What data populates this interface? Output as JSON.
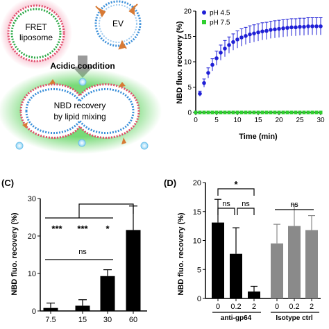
{
  "panel_a": {
    "fret_label_1": "FRET",
    "fret_label_2": "liposome",
    "ev_label": "EV",
    "condition_label": "Acidic condition",
    "result_label_1": "NBD recovery",
    "result_label_2": "by lipid mixing",
    "colors": {
      "glow": "#5fd35f",
      "pink_glow": "#f7b8c8",
      "vesicle_blue": "#3a8fd9",
      "protein": "#d77a35",
      "arrow": "#9a9a9a"
    }
  },
  "chart_data": [
    {
      "id": "B",
      "type": "scatter",
      "title": "",
      "xlabel": "Time (min)",
      "ylabel": "NBD fluo. recovery (%)",
      "xlim": [
        0,
        30
      ],
      "ylim": [
        0,
        20
      ],
      "xticks": [
        0,
        5,
        10,
        15,
        20,
        25,
        30
      ],
      "yticks": [
        0,
        5,
        10,
        15,
        20
      ],
      "legend_position": "top-left",
      "series": [
        {
          "name": "pH 4.5",
          "color": "#1f1fd6",
          "x": [
            0,
            1,
            2,
            3,
            4,
            5,
            6,
            7,
            8,
            9,
            10,
            11,
            12,
            13,
            14,
            15,
            16,
            17,
            18,
            19,
            20,
            21,
            22,
            23,
            24,
            25,
            26,
            27,
            28,
            29,
            30
          ],
          "y": [
            0,
            3.7,
            5.8,
            7.8,
            9.4,
            10.7,
            11.8,
            12.6,
            13.3,
            13.9,
            14.4,
            14.8,
            15.1,
            15.4,
            15.6,
            15.8,
            16.0,
            16.1,
            16.3,
            16.4,
            16.5,
            16.6,
            16.7,
            16.8,
            16.8,
            16.9,
            16.9,
            17.0,
            17.0,
            17.0,
            17.0
          ],
          "err": [
            0,
            0.5,
            0.8,
            1.0,
            1.2,
            1.4,
            1.5,
            1.6,
            1.6,
            1.6,
            1.7,
            1.7,
            1.7,
            1.7,
            1.7,
            1.7,
            1.7,
            1.7,
            1.7,
            1.7,
            1.7,
            1.7,
            1.7,
            1.7,
            1.7,
            1.7,
            1.7,
            1.7,
            1.7,
            1.7,
            1.7
          ]
        },
        {
          "name": "pH 7.5",
          "color": "#2fcf2f",
          "x": [
            0,
            1,
            2,
            3,
            4,
            5,
            6,
            7,
            8,
            9,
            10,
            11,
            12,
            13,
            14,
            15,
            16,
            17,
            18,
            19,
            20,
            21,
            22,
            23,
            24,
            25,
            26,
            27,
            28,
            29,
            30
          ],
          "y": [
            0,
            0,
            0,
            0,
            0,
            0,
            0,
            0,
            0,
            0,
            0,
            0,
            0,
            0,
            0,
            0,
            0,
            0,
            0,
            0,
            0,
            0,
            0,
            0,
            0,
            0,
            0,
            0,
            0,
            0,
            0
          ]
        }
      ]
    },
    {
      "id": "C",
      "type": "bar",
      "panel_label": "(C)",
      "title": "",
      "xlabel": "",
      "ylabel": "NBD fluo. recovery (%)",
      "ylim": [
        0,
        30
      ],
      "yticks": [
        0,
        10,
        20,
        30
      ],
      "categories": [
        "7.5",
        "15",
        "30",
        "60"
      ],
      "values": [
        0.8,
        1.4,
        9.3,
        21.6
      ],
      "err": [
        1.3,
        1.6,
        1.7,
        6.4
      ],
      "color": "#000000",
      "annotations": [
        "***",
        "***",
        "*",
        "ns"
      ]
    },
    {
      "id": "D",
      "type": "bar",
      "panel_label": "(D)",
      "title": "",
      "xlabel": "",
      "ylabel": "NBD fluo. recovery (%)",
      "ylim": [
        0,
        20
      ],
      "yticks": [
        0,
        5,
        10,
        15,
        20
      ],
      "categories": [
        "0",
        "0.2",
        "2",
        "0",
        "0.2",
        "2"
      ],
      "groups": [
        "anti-gp64",
        "Isotype ctrl"
      ],
      "values": [
        13.1,
        7.7,
        1.2,
        9.5,
        12.5,
        11.8
      ],
      "err": [
        4.0,
        4.5,
        0.9,
        3.3,
        3.7,
        2.5
      ],
      "colors": [
        "#000000",
        "#000000",
        "#000000",
        "#8a8a8a",
        "#8a8a8a",
        "#8a8a8a"
      ],
      "annotations": [
        "*",
        "ns",
        "ns",
        "ns"
      ]
    }
  ]
}
